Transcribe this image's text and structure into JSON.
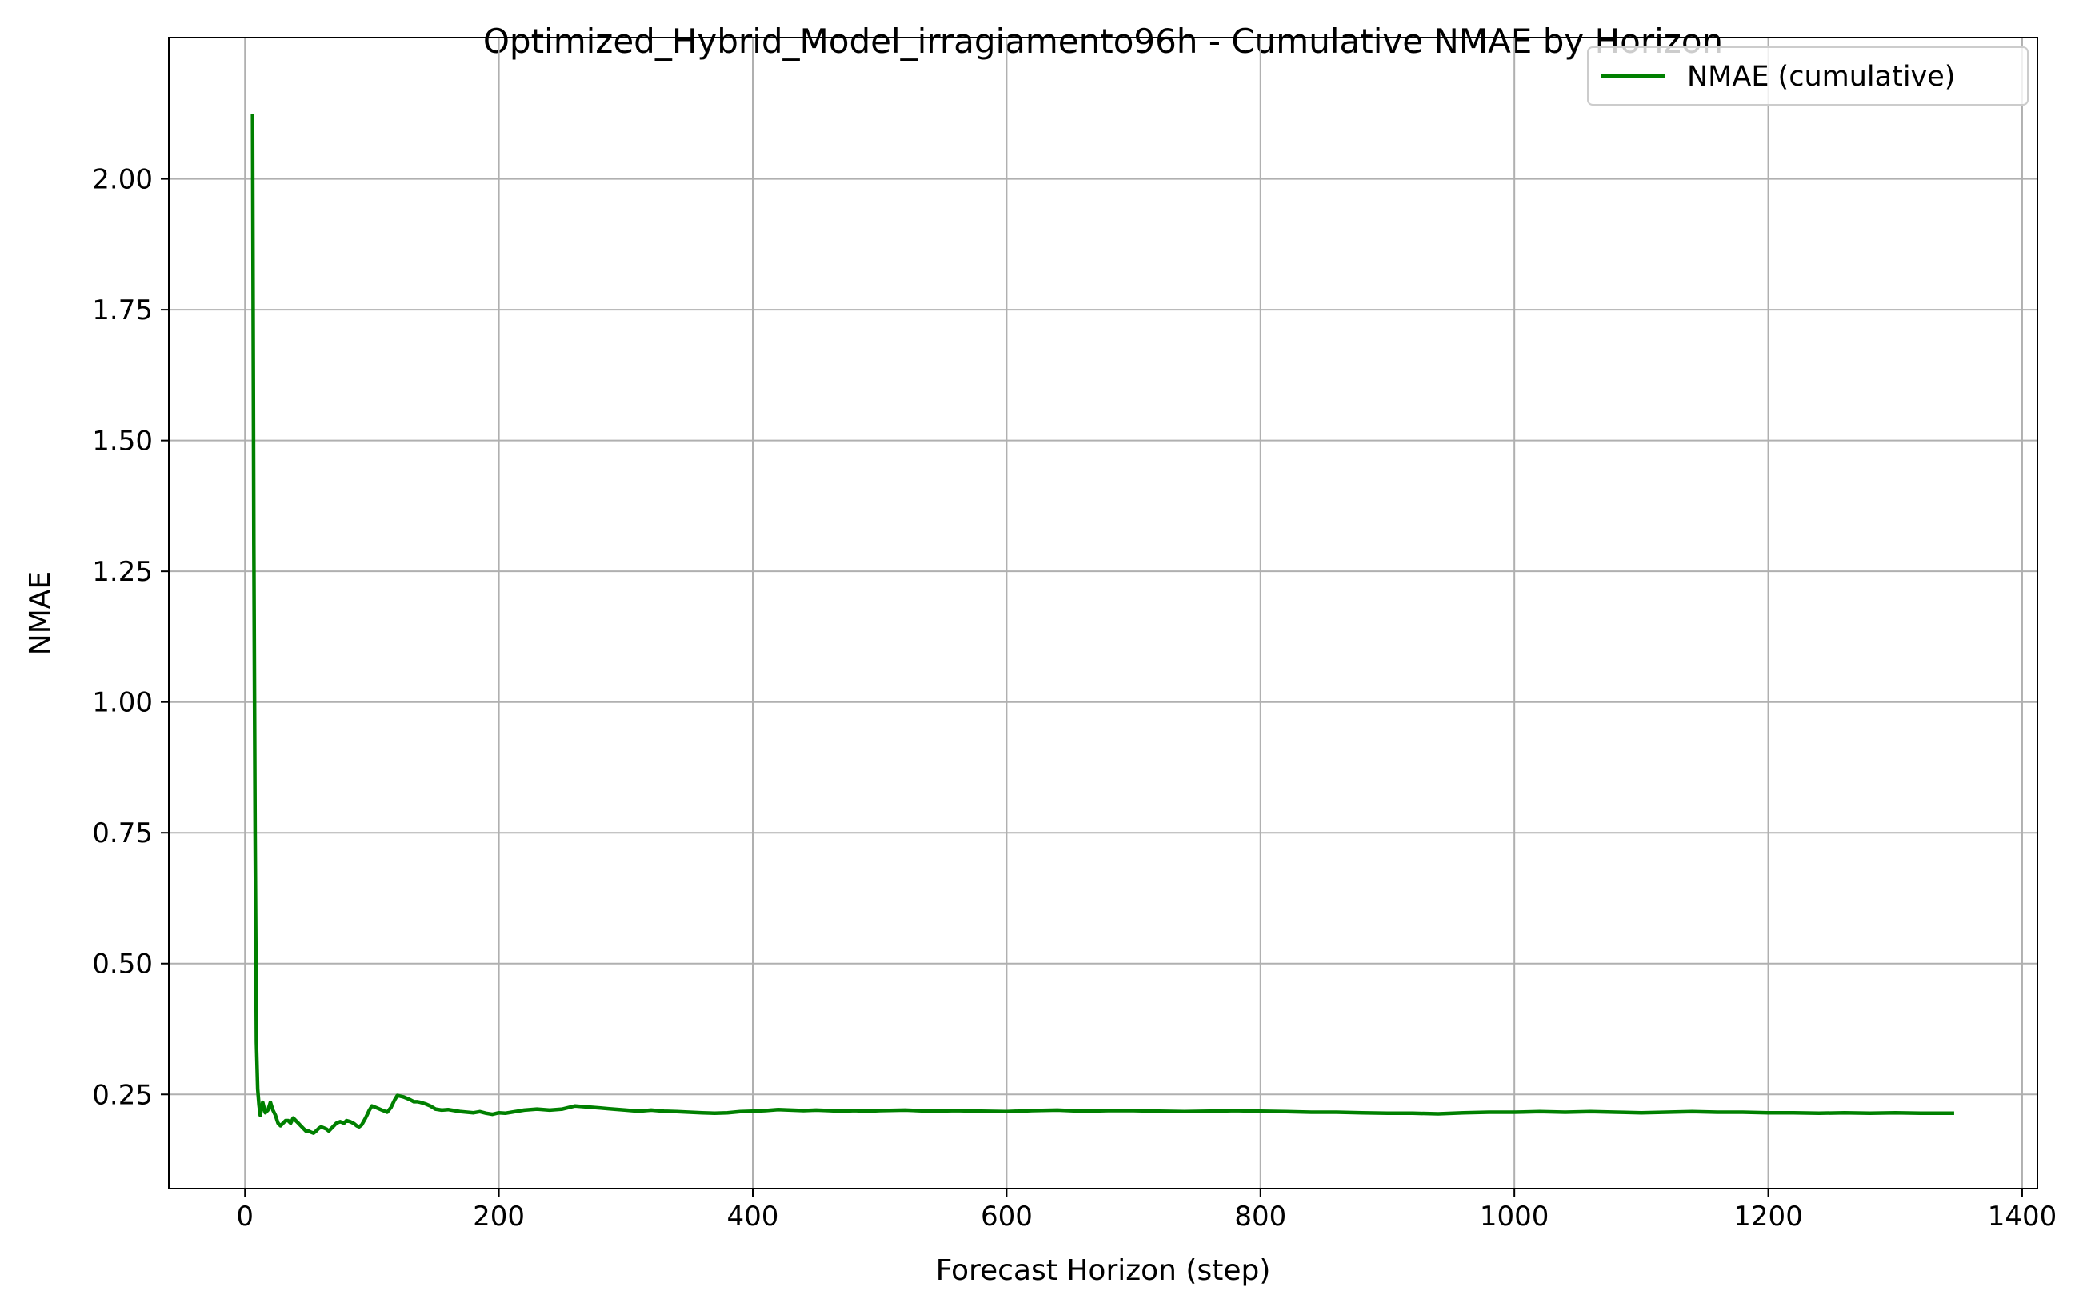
{
  "chart_data": {
    "type": "line",
    "title": "Optimized_Hybrid_Model_irragiamento96h - Cumulative NMAE by Horizon",
    "xlabel": "Forecast Horizon (step)",
    "ylabel": "NMAE",
    "xlim": [
      -60,
      1412
    ],
    "ylim": [
      0.07,
      2.27
    ],
    "xticks": [
      0,
      200,
      400,
      600,
      800,
      1000,
      1200,
      1400
    ],
    "xtick_labels": [
      "0",
      "200",
      "400",
      "600",
      "800",
      "1000",
      "1200",
      "1400"
    ],
    "yticks": [
      0.25,
      0.5,
      0.75,
      1.0,
      1.25,
      1.5,
      1.75,
      2.0
    ],
    "ytick_labels": [
      "0.25",
      "0.50",
      "0.75",
      "1.00",
      "1.25",
      "1.50",
      "1.75",
      "2.00"
    ],
    "grid": true,
    "legend_position": "top-right",
    "series": [
      {
        "name": "NMAE (cumulative)",
        "color": "#008000",
        "x": [
          6,
          7,
          8,
          9,
          10,
          11,
          12,
          14,
          16,
          18,
          20,
          22,
          24,
          26,
          28,
          30,
          32,
          34,
          36,
          38,
          40,
          42,
          44,
          46,
          48,
          50,
          52,
          54,
          56,
          58,
          60,
          62,
          64,
          66,
          68,
          70,
          72,
          75,
          78,
          80,
          83,
          86,
          88,
          90,
          92,
          95,
          98,
          100,
          103,
          106,
          108,
          110,
          112,
          115,
          118,
          120,
          125,
          130,
          133,
          136,
          138,
          142,
          146,
          150,
          155,
          160,
          165,
          170,
          175,
          180,
          185,
          190,
          195,
          200,
          205,
          210,
          215,
          220,
          230,
          240,
          250,
          260,
          270,
          280,
          290,
          300,
          310,
          320,
          330,
          340,
          350,
          360,
          370,
          380,
          390,
          400,
          410,
          420,
          430,
          440,
          450,
          460,
          470,
          480,
          490,
          500,
          520,
          540,
          560,
          580,
          600,
          620,
          640,
          660,
          680,
          700,
          720,
          740,
          760,
          780,
          800,
          820,
          840,
          860,
          880,
          900,
          920,
          940,
          960,
          980,
          1000,
          1020,
          1040,
          1060,
          1080,
          1100,
          1120,
          1140,
          1160,
          1180,
          1200,
          1220,
          1240,
          1260,
          1280,
          1300,
          1320,
          1345
        ],
        "y": [
          2.12,
          1.3,
          0.75,
          0.35,
          0.26,
          0.23,
          0.21,
          0.235,
          0.215,
          0.22,
          0.235,
          0.22,
          0.21,
          0.195,
          0.19,
          0.195,
          0.2,
          0.2,
          0.195,
          0.205,
          0.2,
          0.195,
          0.19,
          0.185,
          0.18,
          0.18,
          0.178,
          0.176,
          0.18,
          0.185,
          0.188,
          0.186,
          0.184,
          0.18,
          0.185,
          0.19,
          0.195,
          0.198,
          0.195,
          0.2,
          0.198,
          0.194,
          0.19,
          0.188,
          0.192,
          0.205,
          0.22,
          0.228,
          0.225,
          0.222,
          0.22,
          0.218,
          0.216,
          0.225,
          0.24,
          0.248,
          0.245,
          0.24,
          0.236,
          0.236,
          0.235,
          0.232,
          0.228,
          0.222,
          0.22,
          0.221,
          0.219,
          0.217,
          0.216,
          0.215,
          0.217,
          0.214,
          0.212,
          0.215,
          0.214,
          0.216,
          0.218,
          0.22,
          0.222,
          0.22,
          0.222,
          0.228,
          0.226,
          0.224,
          0.222,
          0.22,
          0.218,
          0.22,
          0.218,
          0.217,
          0.216,
          0.215,
          0.214,
          0.215,
          0.217,
          0.218,
          0.219,
          0.221,
          0.22,
          0.219,
          0.22,
          0.219,
          0.218,
          0.219,
          0.218,
          0.219,
          0.22,
          0.218,
          0.219,
          0.218,
          0.217,
          0.219,
          0.22,
          0.218,
          0.219,
          0.219,
          0.218,
          0.217,
          0.218,
          0.219,
          0.218,
          0.217,
          0.216,
          0.216,
          0.215,
          0.214,
          0.214,
          0.213,
          0.215,
          0.216,
          0.216,
          0.217,
          0.216,
          0.217,
          0.216,
          0.215,
          0.216,
          0.217,
          0.216,
          0.216,
          0.215,
          0.215,
          0.214,
          0.215,
          0.214,
          0.215,
          0.214,
          0.214
        ]
      }
    ]
  }
}
